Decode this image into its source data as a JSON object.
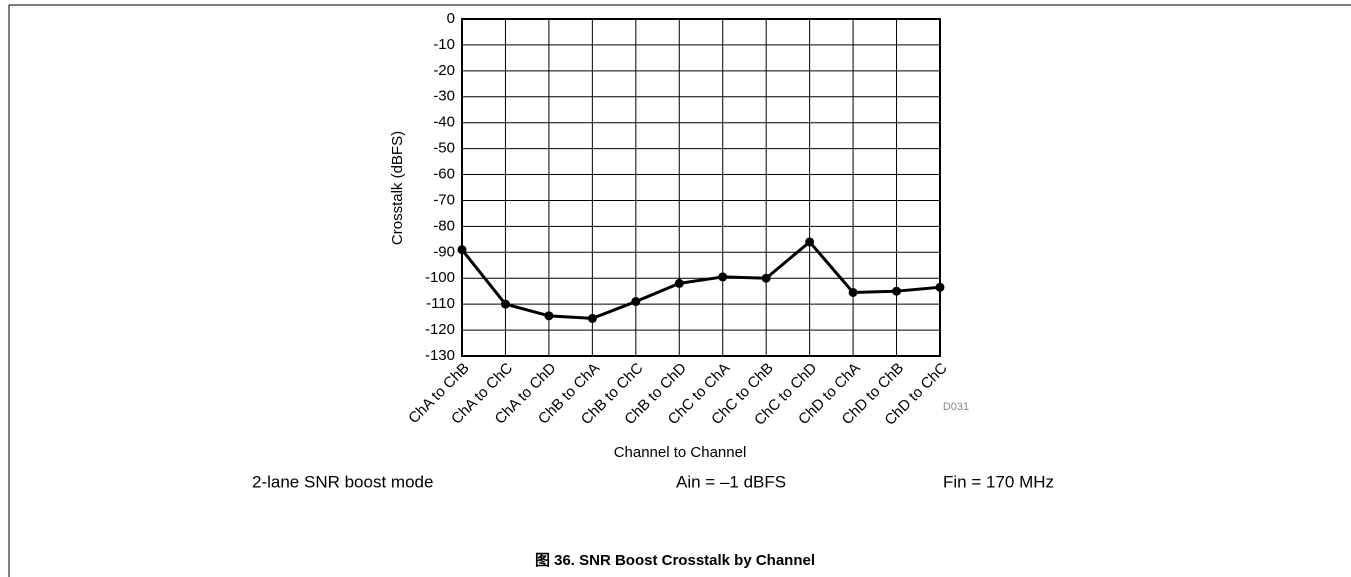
{
  "chart_data": {
    "type": "line",
    "ylabel": "Crosstalk (dBFS)",
    "xlabel": "Channel to Channel",
    "categories": [
      "ChA to ChB",
      "ChA to ChC",
      "ChA to ChD",
      "ChB to ChA",
      "ChB to ChC",
      "ChB to ChD",
      "ChC to ChA",
      "ChC to ChB",
      "ChC to ChD",
      "ChD to ChA",
      "ChD to ChB",
      "ChD to ChC"
    ],
    "values": [
      -89,
      -110,
      -114.5,
      -115.5,
      -109,
      -102,
      -99.5,
      -100,
      -86,
      -105.5,
      -105,
      -103.5
    ],
    "color": "#000000",
    "ylim": [
      -130,
      0
    ],
    "yticks": [
      0,
      -10,
      -20,
      -30,
      -40,
      -50,
      -60,
      -70,
      -80,
      -90,
      -100,
      -110,
      -120,
      -130
    ],
    "grid": true,
    "code": "D031",
    "notes": [
      "2-lane SNR boost mode",
      "Ain = –1 dBFS",
      "Fin = 170 MHz"
    ],
    "caption": "图 36. SNR Boost Crosstalk by Channel"
  }
}
